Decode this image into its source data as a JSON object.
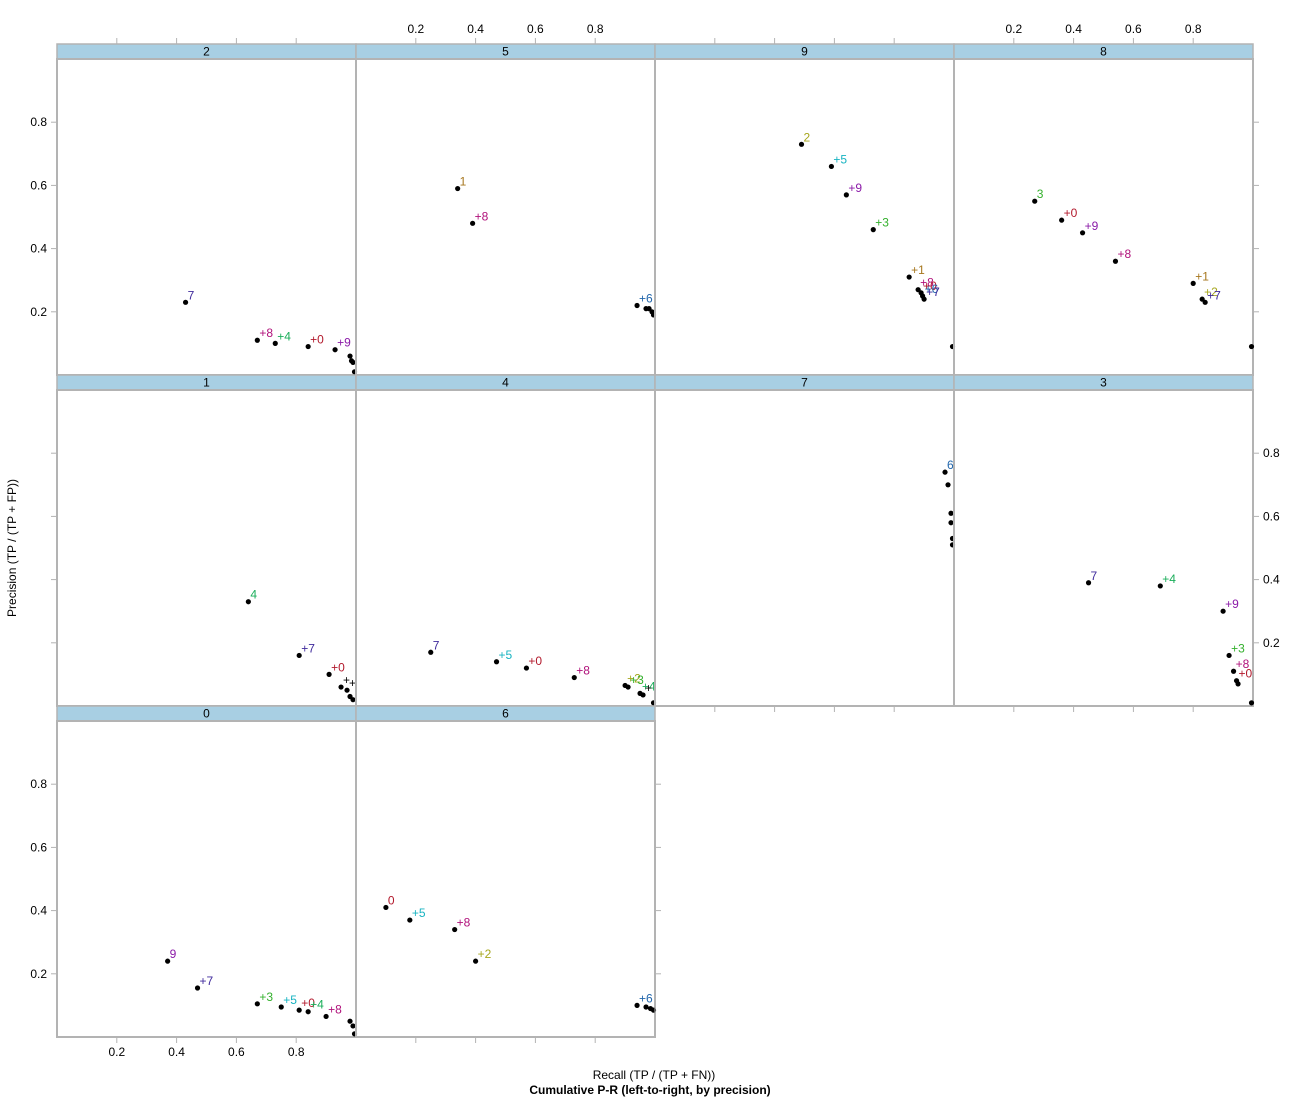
{
  "chart_data": {
    "type": "scatter",
    "title": "Cumulative P-R (left-to-right, by precision)",
    "xlabel": "Recall (TP / (TP + FN))",
    "ylabel": "Precision (TP / (TP + FP))",
    "xlim": [
      0.0,
      1.0
    ],
    "ylim": [
      0.0,
      1.0
    ],
    "x_ticks": [
      "0.2",
      "0.4",
      "0.6",
      "0.8"
    ],
    "y_ticks": [
      "0.2",
      "0.4",
      "0.6",
      "0.8"
    ],
    "tick_values": [
      0.2,
      0.4,
      0.6,
      0.8
    ],
    "label_colors": {
      "0": "#b2182b",
      "1": "#a6761d",
      "2": "#a6a61d",
      "3": "#33b02c",
      "4": "#1aae5a",
      "5": "#17b3c1",
      "6": "#2166ac",
      "7": "#3f2a9c",
      "8": "#b0107a",
      "9": "#8b1aa8"
    },
    "panels": [
      {
        "id": "2",
        "points": [
          {
            "x": 0.43,
            "y": 0.23,
            "label": "7"
          },
          {
            "x": 0.67,
            "y": 0.11,
            "label": "+8"
          },
          {
            "x": 0.73,
            "y": 0.1,
            "label": "+4"
          },
          {
            "x": 0.84,
            "y": 0.09,
            "label": "+0"
          },
          {
            "x": 0.93,
            "y": 0.08,
            "label": "+9"
          },
          {
            "x": 0.98,
            "y": 0.06,
            "label": ""
          },
          {
            "x": 0.985,
            "y": 0.045,
            "label": ""
          },
          {
            "x": 0.99,
            "y": 0.04,
            "label": ""
          },
          {
            "x": 0.995,
            "y": 0.01,
            "label": ""
          }
        ]
      },
      {
        "id": "5",
        "points": [
          {
            "x": 0.34,
            "y": 0.59,
            "label": "1"
          },
          {
            "x": 0.39,
            "y": 0.48,
            "label": "+8"
          },
          {
            "x": 0.94,
            "y": 0.22,
            "label": "+6"
          },
          {
            "x": 0.97,
            "y": 0.21,
            "label": ""
          },
          {
            "x": 0.98,
            "y": 0.21,
            "label": ""
          },
          {
            "x": 0.99,
            "y": 0.2,
            "label": ""
          },
          {
            "x": 0.995,
            "y": 0.19,
            "label": ""
          }
        ]
      },
      {
        "id": "9",
        "points": [
          {
            "x": 0.49,
            "y": 0.73,
            "label": "2"
          },
          {
            "x": 0.59,
            "y": 0.66,
            "label": "+5"
          },
          {
            "x": 0.64,
            "y": 0.57,
            "label": "+9"
          },
          {
            "x": 0.73,
            "y": 0.46,
            "label": "+3"
          },
          {
            "x": 0.85,
            "y": 0.31,
            "label": "+1"
          },
          {
            "x": 0.88,
            "y": 0.27,
            "label": "+8"
          },
          {
            "x": 0.89,
            "y": 0.26,
            "label": "+0"
          },
          {
            "x": 0.895,
            "y": 0.25,
            "label": "+6"
          },
          {
            "x": 0.9,
            "y": 0.24,
            "label": "+7"
          },
          {
            "x": 0.995,
            "y": 0.09,
            "label": ""
          }
        ]
      },
      {
        "id": "8",
        "points": [
          {
            "x": 0.27,
            "y": 0.55,
            "label": "3"
          },
          {
            "x": 0.36,
            "y": 0.49,
            "label": "+0"
          },
          {
            "x": 0.43,
            "y": 0.45,
            "label": "+9"
          },
          {
            "x": 0.54,
            "y": 0.36,
            "label": "+8"
          },
          {
            "x": 0.8,
            "y": 0.29,
            "label": "+1"
          },
          {
            "x": 0.83,
            "y": 0.24,
            "label": "+2"
          },
          {
            "x": 0.84,
            "y": 0.23,
            "label": "+7"
          },
          {
            "x": 0.995,
            "y": 0.09,
            "label": ""
          }
        ]
      },
      {
        "id": "1",
        "points": [
          {
            "x": 0.64,
            "y": 0.33,
            "label": "4"
          },
          {
            "x": 0.81,
            "y": 0.16,
            "label": "+7"
          },
          {
            "x": 0.91,
            "y": 0.1,
            "label": "+0"
          },
          {
            "x": 0.95,
            "y": 0.06,
            "label": "+"
          },
          {
            "x": 0.97,
            "y": 0.05,
            "label": "+"
          },
          {
            "x": 0.98,
            "y": 0.03,
            "label": ""
          },
          {
            "x": 0.99,
            "y": 0.02,
            "label": ""
          }
        ]
      },
      {
        "id": "4",
        "points": [
          {
            "x": 0.25,
            "y": 0.17,
            "label": "7"
          },
          {
            "x": 0.47,
            "y": 0.14,
            "label": "+5"
          },
          {
            "x": 0.57,
            "y": 0.12,
            "label": "+0"
          },
          {
            "x": 0.73,
            "y": 0.09,
            "label": "+8"
          },
          {
            "x": 0.9,
            "y": 0.065,
            "label": "+2"
          },
          {
            "x": 0.91,
            "y": 0.06,
            "label": "+3"
          },
          {
            "x": 0.95,
            "y": 0.04,
            "label": "+4"
          },
          {
            "x": 0.96,
            "y": 0.035,
            "label": "+"
          },
          {
            "x": 0.995,
            "y": 0.01,
            "label": ""
          }
        ]
      },
      {
        "id": "7",
        "points": [
          {
            "x": 0.97,
            "y": 0.74,
            "label": "6"
          },
          {
            "x": 0.98,
            "y": 0.7,
            "label": ""
          },
          {
            "x": 0.99,
            "y": 0.61,
            "label": ""
          },
          {
            "x": 0.99,
            "y": 0.58,
            "label": ""
          },
          {
            "x": 0.995,
            "y": 0.53,
            "label": ""
          },
          {
            "x": 0.995,
            "y": 0.51,
            "label": ""
          }
        ]
      },
      {
        "id": "3",
        "points": [
          {
            "x": 0.45,
            "y": 0.39,
            "label": "7"
          },
          {
            "x": 0.69,
            "y": 0.38,
            "label": "+4"
          },
          {
            "x": 0.9,
            "y": 0.3,
            "label": "+9"
          },
          {
            "x": 0.92,
            "y": 0.16,
            "label": "+3"
          },
          {
            "x": 0.935,
            "y": 0.11,
            "label": "+8"
          },
          {
            "x": 0.945,
            "y": 0.08,
            "label": "+0"
          },
          {
            "x": 0.95,
            "y": 0.07,
            "label": ""
          },
          {
            "x": 0.995,
            "y": 0.01,
            "label": ""
          }
        ]
      },
      {
        "id": "0",
        "points": [
          {
            "x": 0.37,
            "y": 0.24,
            "label": "9"
          },
          {
            "x": 0.47,
            "y": 0.155,
            "label": "+7"
          },
          {
            "x": 0.67,
            "y": 0.105,
            "label": "+3"
          },
          {
            "x": 0.75,
            "y": 0.095,
            "label": "+5"
          },
          {
            "x": 0.81,
            "y": 0.085,
            "label": "+0"
          },
          {
            "x": 0.84,
            "y": 0.08,
            "label": "+4"
          },
          {
            "x": 0.9,
            "y": 0.065,
            "label": "+8"
          },
          {
            "x": 0.98,
            "y": 0.05,
            "label": ""
          },
          {
            "x": 0.99,
            "y": 0.035,
            "label": ""
          },
          {
            "x": 0.995,
            "y": 0.01,
            "label": ""
          }
        ]
      },
      {
        "id": "6",
        "points": [
          {
            "x": 0.1,
            "y": 0.41,
            "label": "0"
          },
          {
            "x": 0.18,
            "y": 0.37,
            "label": "+5"
          },
          {
            "x": 0.33,
            "y": 0.34,
            "label": "+8"
          },
          {
            "x": 0.4,
            "y": 0.24,
            "label": "+2"
          },
          {
            "x": 0.94,
            "y": 0.1,
            "label": "+6"
          },
          {
            "x": 0.97,
            "y": 0.095,
            "label": ""
          },
          {
            "x": 0.985,
            "y": 0.09,
            "label": ""
          },
          {
            "x": 0.995,
            "y": 0.085,
            "label": ""
          }
        ]
      }
    ]
  }
}
